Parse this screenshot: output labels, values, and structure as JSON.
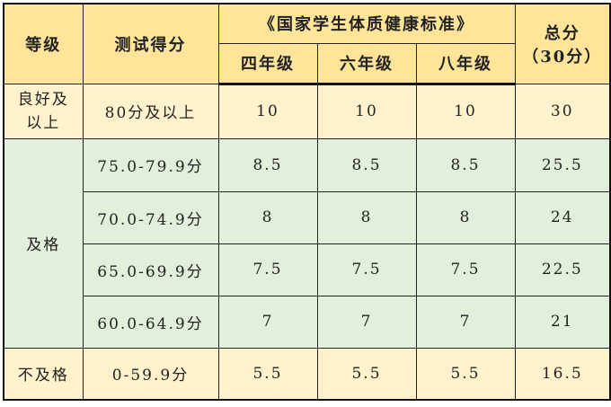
{
  "table": {
    "headers": {
      "grade": "等级",
      "score": "测试得分",
      "standard": "《国家学生体质健康标准》",
      "grades": [
        "四年级",
        "六年级",
        "八年级"
      ],
      "total_line1": "总分",
      "total_line2": "（30分）"
    },
    "groups": [
      {
        "level": "良好及以上",
        "rows": [
          {
            "score": "80分及以上",
            "values": [
              "10",
              "10",
              "10"
            ],
            "total": "30"
          }
        ]
      },
      {
        "level": "及格",
        "rows": [
          {
            "score": "75.0-79.9分",
            "values": [
              "8.5",
              "8.5",
              "8.5"
            ],
            "total": "25.5"
          },
          {
            "score": "70.0-74.9分",
            "values": [
              "8",
              "8",
              "8"
            ],
            "total": "24"
          },
          {
            "score": "65.0-69.9分",
            "values": [
              "7.5",
              "7.5",
              "7.5"
            ],
            "total": "22.5"
          },
          {
            "score": "60.0-64.9分",
            "values": [
              "7",
              "7",
              "7"
            ],
            "total": "21"
          }
        ]
      },
      {
        "level": "不及格",
        "rows": [
          {
            "score": "0-59.9分",
            "values": [
              "5.5",
              "5.5",
              "5.5"
            ],
            "total": "16.5"
          }
        ]
      }
    ],
    "colors": {
      "header": "#FFE49A",
      "good": "#FFF2CC",
      "pass": "#E2EFDA",
      "fail": "#FFF2CC"
    }
  }
}
